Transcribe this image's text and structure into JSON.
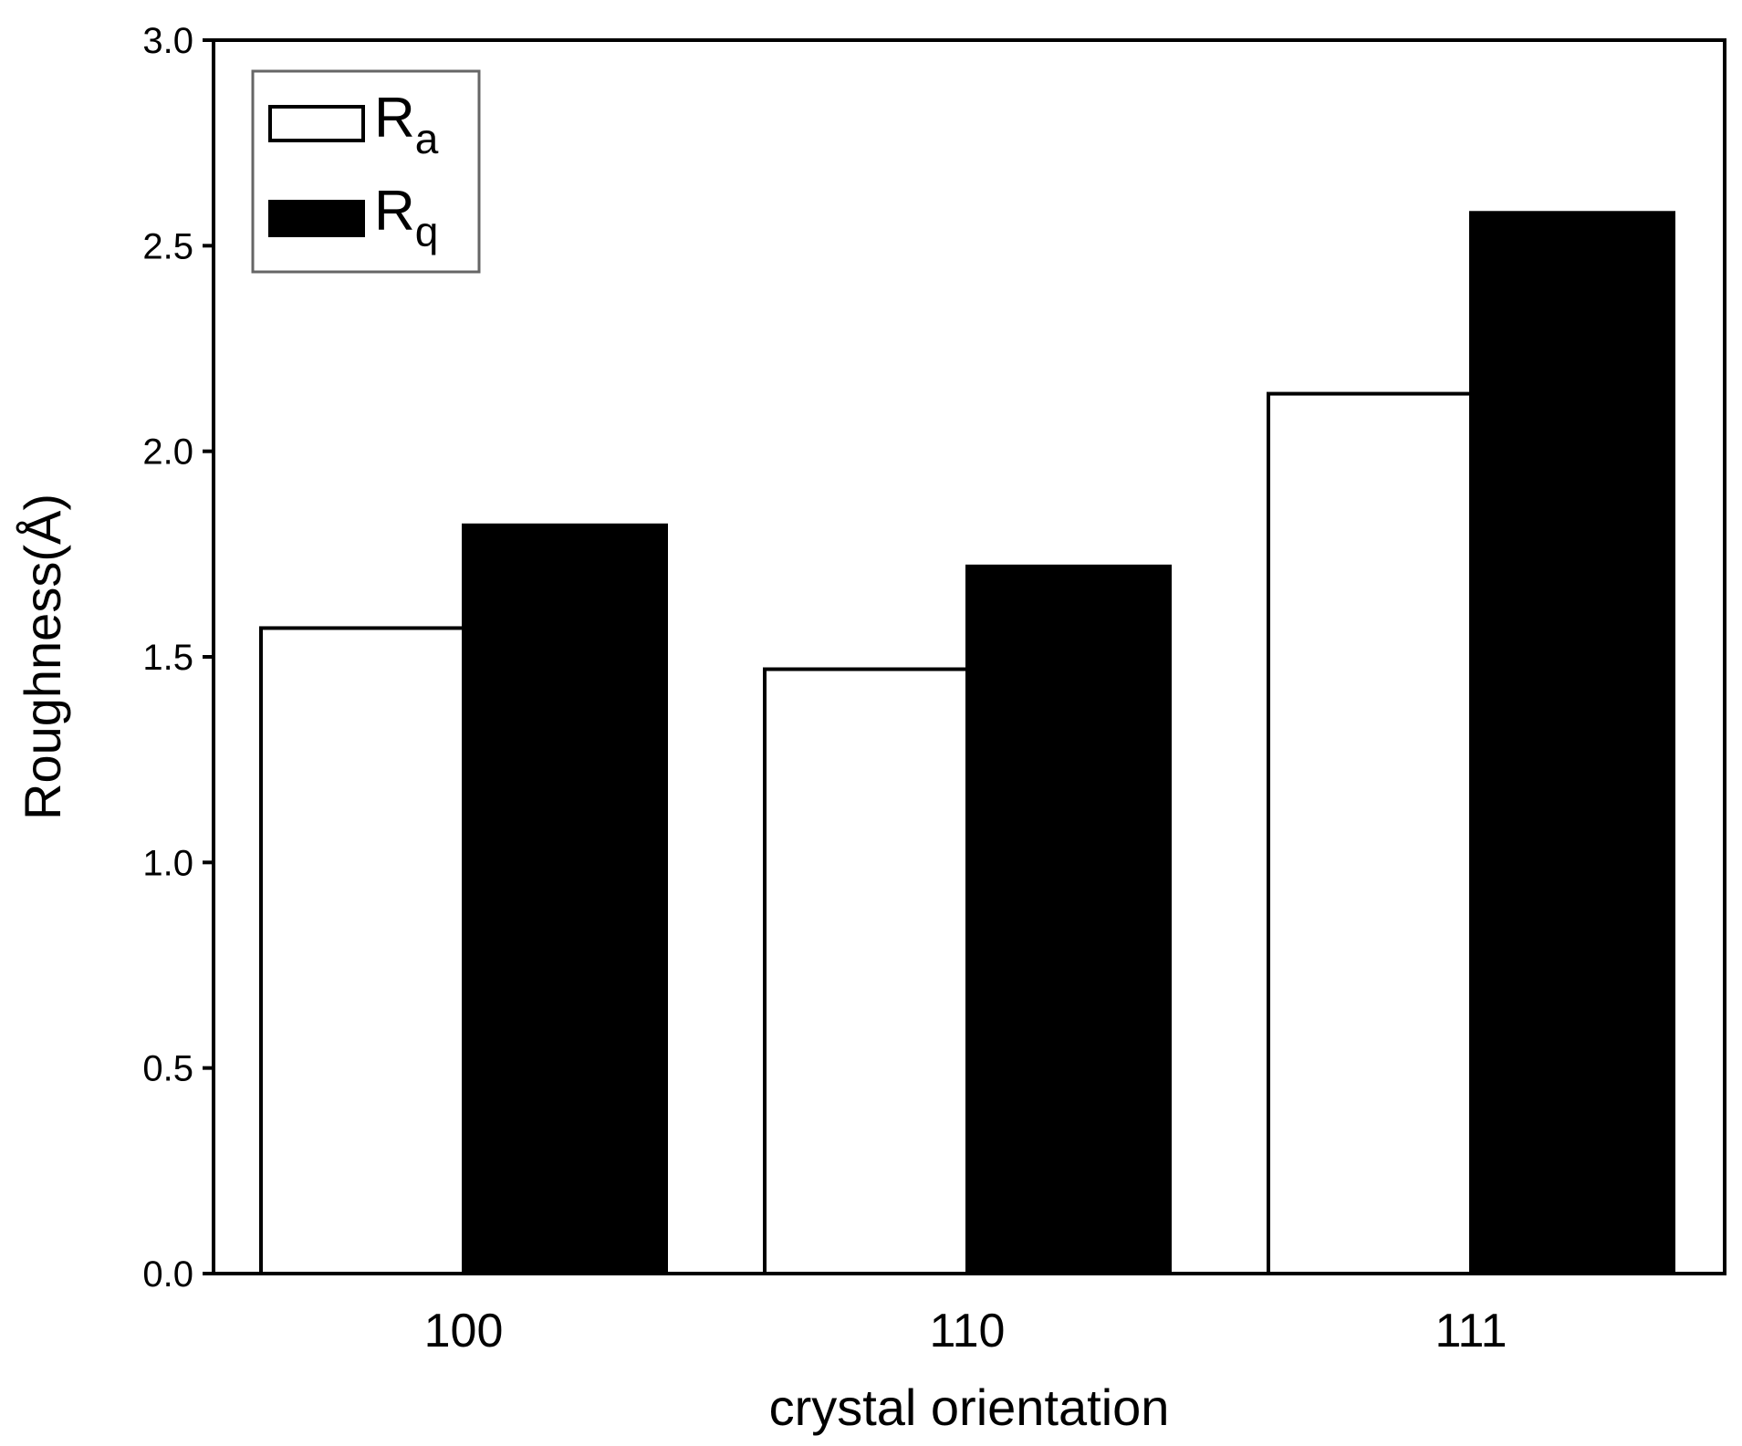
{
  "chart_data": {
    "type": "bar",
    "categories": [
      "100",
      "110",
      "111"
    ],
    "series": [
      {
        "name": "Ra",
        "name_main": "R",
        "name_sub": "a",
        "fill": "#ffffff",
        "values": [
          1.57,
          1.47,
          2.14
        ]
      },
      {
        "name": "Rq",
        "name_main": "R",
        "name_sub": "q",
        "fill": "#000000",
        "values": [
          1.82,
          1.72,
          2.58
        ]
      }
    ],
    "xlabel": "crystal orientation",
    "ylabel": "Roughness(Å)",
    "ylim": [
      0,
      3.0
    ],
    "yticks": [
      "0.0",
      "0.5",
      "1.0",
      "1.5",
      "2.0",
      "2.5",
      "3.0"
    ],
    "grid": false,
    "legend": "top-left"
  }
}
